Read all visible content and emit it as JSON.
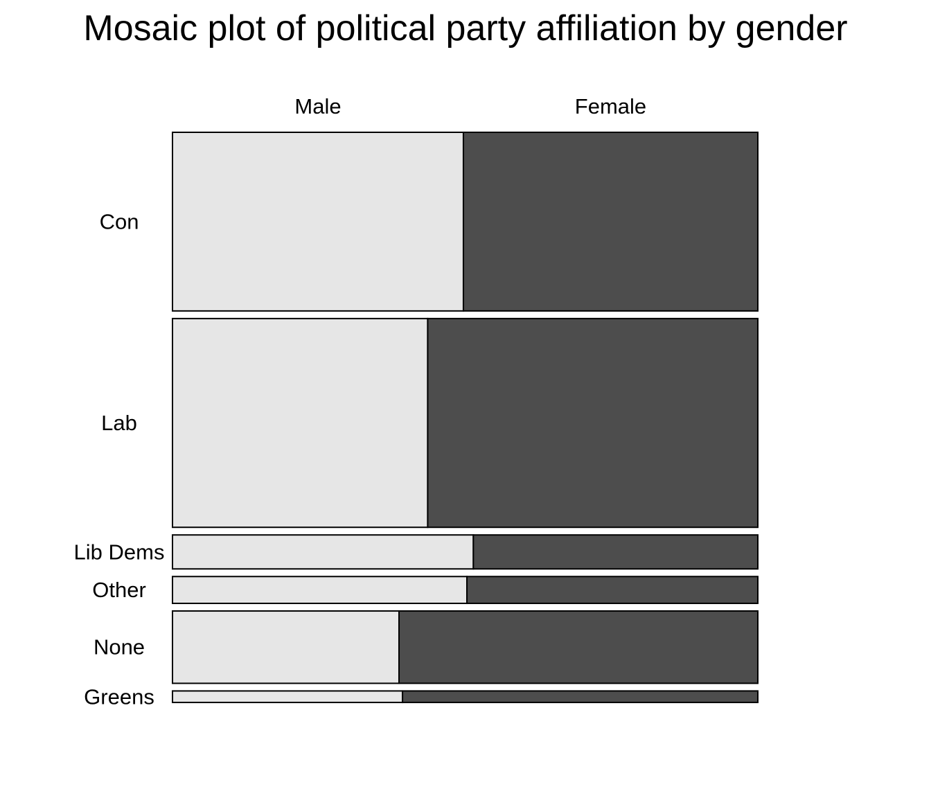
{
  "chart_data": {
    "type": "mosaic",
    "title": "Mosaic plot of political party affiliation by gender",
    "column_variable_levels": [
      "Male",
      "Female"
    ],
    "row_variable_levels": [
      "Con",
      "Lab",
      "Lib Dems",
      "Other",
      "None",
      "Greens"
    ],
    "row_proportions": [
      0.326,
      0.381,
      0.062,
      0.049,
      0.132,
      0.021
    ],
    "male_share_by_row": [
      0.497,
      0.436,
      0.514,
      0.503,
      0.387,
      0.393
    ],
    "colors": {
      "Male": "#e6e6e6",
      "Female": "#4d4d4d",
      "border": "#000000"
    }
  }
}
